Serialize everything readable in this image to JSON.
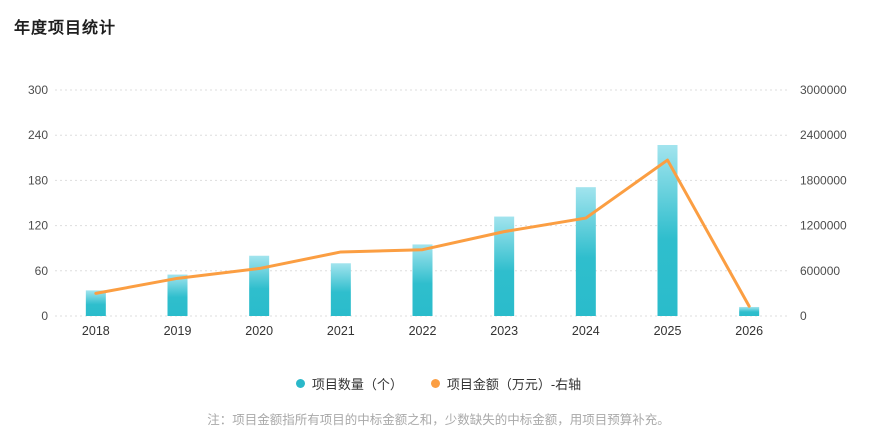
{
  "page": {
    "title": "年度项目统计",
    "note": "注：项目金额指所有项目的中标金额之和，少数缺失的中标金额，用项目预算补充。"
  },
  "legend": {
    "items": [
      {
        "label": "项目数量（个）",
        "color": "#2ab8c9"
      },
      {
        "label": "项目金额（万元）-右轴",
        "color": "#fb9e42"
      }
    ]
  },
  "colors": {
    "bar_top": "#a2e4ee",
    "bar_mid": "#2fbecd",
    "bar_bottom": "#2abccb",
    "line": "#fb9e42",
    "grid": "#dddddd",
    "axis_label": "#4d4d4d",
    "x_label": "#333333"
  },
  "chart_data": {
    "type": "combo",
    "categories": [
      "2018",
      "2019",
      "2020",
      "2021",
      "2022",
      "2023",
      "2024",
      "2025",
      "2026"
    ],
    "series": [
      {
        "name": "项目数量（个）",
        "type": "bar",
        "axis": "left",
        "values": [
          34,
          55,
          80,
          70,
          95,
          132,
          171,
          227,
          12
        ]
      },
      {
        "name": "项目金额（万元）-右轴",
        "type": "line",
        "axis": "right",
        "values": [
          300000,
          500000,
          630000,
          850000,
          880000,
          1120000,
          1300000,
          2070000,
          130000
        ]
      }
    ],
    "title": "年度项目统计",
    "xlabel": "",
    "ylabel_left": "项目数量（个）",
    "ylabel_right": "项目金额（万元）",
    "left_axis": {
      "min": 0,
      "max": 300,
      "ticks": [
        0,
        60,
        120,
        180,
        240,
        300
      ]
    },
    "right_axis": {
      "min": 0,
      "max": 3000000,
      "ticks": [
        0,
        600000,
        1200000,
        1800000,
        2400000,
        3000000
      ]
    },
    "grid": "horizontal dashed",
    "legend_position": "bottom"
  }
}
